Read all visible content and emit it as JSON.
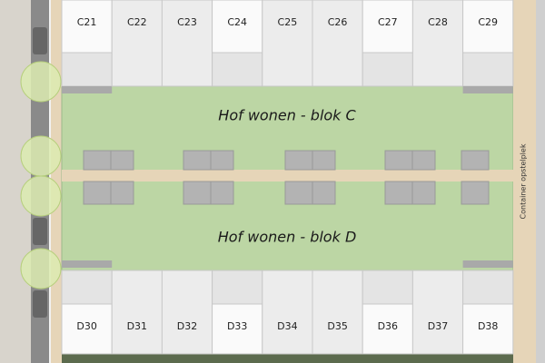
{
  "blocks": [
    {
      "title": "Hof wonen - blok C",
      "lots": [
        "C21",
        "C22",
        "C23",
        "C24",
        "C25",
        "C26",
        "C27",
        "C28",
        "C29"
      ]
    },
    {
      "title": "Hof wonen - blok D",
      "lots": [
        "D30",
        "D31",
        "D32",
        "D33",
        "D34",
        "D35",
        "D36",
        "D37",
        "D38"
      ]
    }
  ],
  "side_label": "Container opstelplek"
}
